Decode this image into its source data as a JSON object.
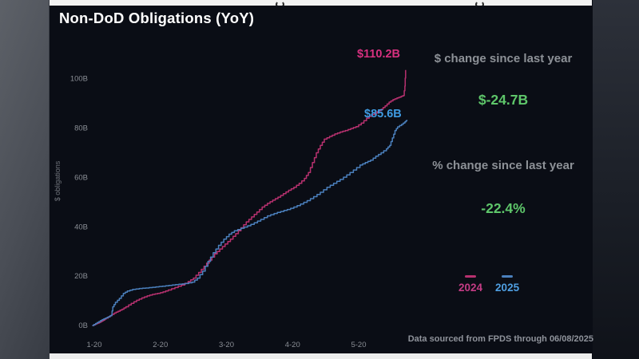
{
  "title": "Non-DoD Obligations (YoY)",
  "y_axis_label": "$ obligations",
  "stats": {
    "dollar_header": "$ change since last year",
    "dollar_value": "$-24.7B",
    "percent_header": "% change since last year",
    "percent_value": "-22.4%"
  },
  "end_labels": {
    "y2024": "$110.2B",
    "y2025": "$85.6B"
  },
  "legend": [
    {
      "label": "2024",
      "color": "#b8316f"
    },
    {
      "label": "2025",
      "color": "#4b80bd"
    }
  ],
  "footer": "Data sourced from FPDS through 06/08/2025",
  "colors": {
    "panel_background": "#0a0d15",
    "line_2024": "#b8316f",
    "line_2025": "#4b80bd",
    "label_2024": "#d6307f",
    "label_2025": "#3f9be2",
    "stat_green": "#5ec66a",
    "muted_text": "#8d9197",
    "title_text": "#ffffff"
  },
  "chart_data": {
    "type": "line",
    "title": "Non-DoD Obligations (YoY)",
    "xlabel": "",
    "ylabel": "$ obligations",
    "x_tick_labels": [
      "1-20",
      "2-20",
      "3-20",
      "4-20",
      "5-20"
    ],
    "x_tick_values": [
      1,
      2,
      3,
      4,
      5
    ],
    "y_tick_labels": [
      "0B",
      "20B",
      "40B",
      "60B",
      "80B",
      "100B"
    ],
    "y_tick_values": [
      0,
      20,
      40,
      60,
      80,
      100
    ],
    "xlim": [
      0.9,
      5.95
    ],
    "ylim": [
      0,
      115
    ],
    "grid": false,
    "legend_position": "bottom-right",
    "units": "billions USD, cumulative obligations by month-day",
    "series": [
      {
        "name": "2024",
        "color": "#b8316f",
        "end_label": "$110.2B",
        "end_value_billions": 110.2,
        "points": [
          [
            0.97,
            0
          ],
          [
            1.02,
            0.6
          ],
          [
            1.06,
            1
          ],
          [
            1.1,
            1.6
          ],
          [
            1.14,
            2.2
          ],
          [
            1.18,
            3
          ],
          [
            1.24,
            4
          ],
          [
            1.3,
            5
          ],
          [
            1.36,
            5.8
          ],
          [
            1.42,
            6.6
          ],
          [
            1.48,
            7.6
          ],
          [
            1.56,
            9
          ],
          [
            1.64,
            10.2
          ],
          [
            1.72,
            11.2
          ],
          [
            1.8,
            12
          ],
          [
            1.88,
            12.6
          ],
          [
            1.96,
            13
          ],
          [
            2.04,
            13.6
          ],
          [
            2.12,
            14.4
          ],
          [
            2.22,
            15.4
          ],
          [
            2.32,
            16.4
          ],
          [
            2.42,
            17.8
          ],
          [
            2.5,
            19.2
          ],
          [
            2.58,
            21.5
          ],
          [
            2.66,
            24
          ],
          [
            2.74,
            26.5
          ],
          [
            2.82,
            29
          ],
          [
            2.9,
            31
          ],
          [
            2.98,
            33
          ],
          [
            3.06,
            35
          ],
          [
            3.14,
            37.2
          ],
          [
            3.22,
            39.6
          ],
          [
            3.3,
            42
          ],
          [
            3.38,
            44
          ],
          [
            3.46,
            46
          ],
          [
            3.54,
            48
          ],
          [
            3.62,
            49.5
          ],
          [
            3.7,
            50.8
          ],
          [
            3.78,
            52
          ],
          [
            3.86,
            53.4
          ],
          [
            3.94,
            54.8
          ],
          [
            4.02,
            56
          ],
          [
            4.1,
            57.6
          ],
          [
            4.18,
            59.6
          ],
          [
            4.24,
            62
          ],
          [
            4.3,
            66
          ],
          [
            4.36,
            70
          ],
          [
            4.42,
            73
          ],
          [
            4.48,
            75.5
          ],
          [
            4.56,
            76.6
          ],
          [
            4.64,
            77.6
          ],
          [
            4.72,
            78.4
          ],
          [
            4.8,
            79
          ],
          [
            4.88,
            79.8
          ],
          [
            4.96,
            80.6
          ],
          [
            5.04,
            82
          ],
          [
            5.12,
            84
          ],
          [
            5.2,
            85.5
          ],
          [
            5.28,
            86.6
          ],
          [
            5.34,
            87.6
          ],
          [
            5.4,
            89
          ],
          [
            5.46,
            90.5
          ],
          [
            5.52,
            91.5
          ],
          [
            5.58,
            92.2
          ],
          [
            5.64,
            92.8
          ],
          [
            5.68,
            93.2
          ],
          [
            5.7,
            97
          ],
          [
            5.71,
            103.5
          ]
        ]
      },
      {
        "name": "2025",
        "color": "#4b80bd",
        "end_label": "$85.6B",
        "end_value_billions": 85.6,
        "points": [
          [
            0.97,
            0
          ],
          [
            1.02,
            0.8
          ],
          [
            1.07,
            1.6
          ],
          [
            1.12,
            2.4
          ],
          [
            1.17,
            3
          ],
          [
            1.22,
            3.6
          ],
          [
            1.26,
            4.2
          ],
          [
            1.28,
            7.6
          ],
          [
            1.32,
            9.4
          ],
          [
            1.38,
            11
          ],
          [
            1.44,
            13
          ],
          [
            1.5,
            14
          ],
          [
            1.58,
            14.6
          ],
          [
            1.68,
            15
          ],
          [
            1.78,
            15.2
          ],
          [
            1.88,
            15.5
          ],
          [
            1.98,
            15.8
          ],
          [
            2.08,
            16.1
          ],
          [
            2.18,
            16.4
          ],
          [
            2.28,
            16.7
          ],
          [
            2.38,
            17
          ],
          [
            2.48,
            17.6
          ],
          [
            2.56,
            19.2
          ],
          [
            2.64,
            22
          ],
          [
            2.72,
            26
          ],
          [
            2.8,
            29.5
          ],
          [
            2.88,
            32.5
          ],
          [
            2.96,
            35
          ],
          [
            3.04,
            37
          ],
          [
            3.12,
            38.4
          ],
          [
            3.22,
            39.4
          ],
          [
            3.32,
            40.4
          ],
          [
            3.42,
            41.6
          ],
          [
            3.52,
            43
          ],
          [
            3.62,
            44.4
          ],
          [
            3.72,
            45.4
          ],
          [
            3.82,
            46.2
          ],
          [
            3.92,
            47
          ],
          [
            4.02,
            48
          ],
          [
            4.12,
            49.2
          ],
          [
            4.22,
            50.6
          ],
          [
            4.32,
            52.2
          ],
          [
            4.42,
            54
          ],
          [
            4.52,
            56
          ],
          [
            4.62,
            57.6
          ],
          [
            4.72,
            59.2
          ],
          [
            4.82,
            61
          ],
          [
            4.92,
            63
          ],
          [
            5.02,
            65
          ],
          [
            5.1,
            66
          ],
          [
            5.18,
            67
          ],
          [
            5.26,
            68.6
          ],
          [
            5.34,
            70
          ],
          [
            5.42,
            71.6
          ],
          [
            5.47,
            73
          ],
          [
            5.51,
            76
          ],
          [
            5.55,
            79
          ],
          [
            5.59,
            80.5
          ],
          [
            5.65,
            81.5
          ],
          [
            5.7,
            82.5
          ],
          [
            5.73,
            83.3
          ]
        ]
      }
    ],
    "annotations": [
      {
        "text": "$110.2B",
        "series": "2024",
        "color": "#d6307f"
      },
      {
        "text": "$85.6B",
        "series": "2025",
        "color": "#3f9be2"
      },
      {
        "text": "$ change since last year",
        "color": "#8d9197"
      },
      {
        "text": "$-24.7B",
        "color": "#5ec66a"
      },
      {
        "text": "% change since last year",
        "color": "#8d9197"
      },
      {
        "text": "-22.4%",
        "color": "#5ec66a"
      },
      {
        "text": "Data sourced from FPDS through 06/08/2025",
        "color": "#8f939b"
      }
    ]
  }
}
